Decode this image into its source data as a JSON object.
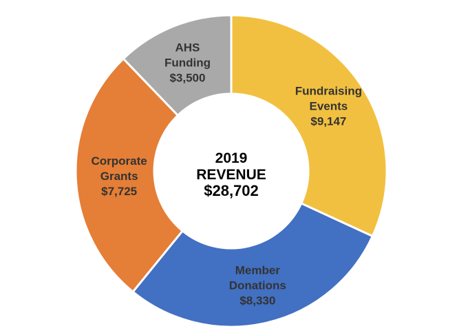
{
  "chart_data": {
    "type": "pie",
    "variant": "donut",
    "center": {
      "line1": "2019",
      "line2": "REVENUE",
      "line3": "$28,702"
    },
    "slices": [
      {
        "label_lines": [
          "Fundraising",
          "Events"
        ],
        "value": 9147,
        "value_text": "$9,147",
        "color": "#F2C040"
      },
      {
        "label_lines": [
          "Member",
          "Donations"
        ],
        "value": 8330,
        "value_text": "$8,330",
        "color": "#4270C2"
      },
      {
        "label_lines": [
          "Corporate",
          "Grants"
        ],
        "value": 7725,
        "value_text": "$7,725",
        "color": "#E57E36"
      },
      {
        "label_lines": [
          "AHS",
          "Funding"
        ],
        "value": 3500,
        "value_text": "$3,500",
        "color": "#A9A9A9"
      }
    ],
    "start_angle_deg": 0,
    "direction": "clockwise",
    "legend": "none"
  }
}
